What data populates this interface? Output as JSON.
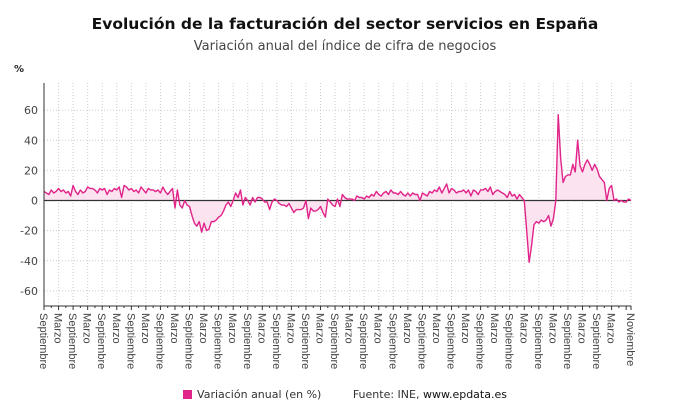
{
  "chart_data": {
    "type": "area",
    "title": "Evolución de la facturación del sector servicios en España",
    "subtitle": "Variación anual del índice de cifra de negocios",
    "ylabel": "%",
    "xlabel": "",
    "ylim": [
      -70,
      78
    ],
    "yticks": [
      60,
      40,
      20,
      0,
      -20,
      -40,
      -60
    ],
    "grid": true,
    "legend_position": "bottom",
    "colors": {
      "line": "#e0248a",
      "fill": "#fbe3f0",
      "zero_line": "#333333",
      "grid": "#cccccc"
    },
    "xtick_labels": [
      "Septiembre",
      "Marzo",
      "Septiembre",
      "Marzo",
      "Septiembre",
      "Marzo",
      "Septiembre",
      "Marzo",
      "Septiembre",
      "Marzo",
      "Septiembre",
      "Marzo",
      "Septiembre",
      "Marzo",
      "Septiembre",
      "Marzo",
      "Septiembre",
      "Marzo",
      "Septiembre",
      "Marzo",
      "Septiembre",
      "Marzo",
      "Septiembre",
      "Marzo",
      "Septiembre",
      "Marzo",
      "Septiembre",
      "Marzo",
      "Septiembre",
      "Marzo",
      "Septiembre",
      "Marzo",
      "Septiembre",
      "Marzo",
      "Septiembre",
      "Marzo",
      "Septiembre",
      "Marzo",
      "Septiembre",
      "Marzo",
      "Noviembre"
    ],
    "series": [
      {
        "name": "Variación anual (en %)",
        "values": [
          6,
          5,
          4,
          7,
          5,
          6,
          8,
          6,
          7,
          5,
          6,
          3,
          10,
          6,
          4,
          7,
          5,
          6,
          9,
          8,
          8,
          7,
          5,
          8,
          7,
          8,
          4,
          7,
          6,
          8,
          7,
          9,
          2,
          10,
          9,
          7,
          8,
          6,
          7,
          5,
          9,
          7,
          5,
          8,
          7,
          7,
          6,
          7,
          5,
          9,
          6,
          4,
          6,
          8,
          -5,
          7,
          -3,
          -5,
          0,
          -3,
          -4,
          -10,
          -15,
          -17,
          -14,
          -21,
          -15,
          -20,
          -19,
          -14,
          -14,
          -13,
          -11,
          -10,
          -7,
          -3,
          -1,
          -4,
          0,
          5,
          2,
          7,
          -3,
          2,
          0,
          -3,
          2,
          -1,
          2,
          2,
          1,
          -1,
          -1,
          -6,
          -1,
          1,
          0,
          -2,
          -3,
          -3,
          -4,
          -2,
          -5,
          -8,
          -6,
          -6,
          -6,
          -5,
          0,
          -12,
          -5,
          -7,
          -7,
          -6,
          -4,
          -8,
          -11,
          1,
          -1,
          -3,
          -4,
          1,
          -4,
          4,
          2,
          1,
          1,
          1,
          0,
          3,
          2,
          2,
          1,
          3,
          2,
          4,
          3,
          6,
          4,
          3,
          5,
          6,
          4,
          7,
          5,
          5,
          4,
          6,
          4,
          3,
          5,
          3,
          5,
          4,
          4,
          0,
          5,
          4,
          3,
          6,
          5,
          7,
          6,
          9,
          5,
          8,
          11,
          5,
          8,
          7,
          5,
          6,
          6,
          7,
          5,
          7,
          3,
          7,
          6,
          4,
          7,
          7,
          8,
          6,
          9,
          4,
          6,
          7,
          6,
          5,
          4,
          2,
          6,
          3,
          4,
          1,
          4,
          2,
          0,
          -20,
          -41,
          -30,
          -16,
          -14,
          -15,
          -13,
          -14,
          -13,
          -10,
          -17,
          -12,
          0,
          57,
          28,
          12,
          16,
          17,
          17,
          24,
          19,
          40,
          23,
          19,
          24,
          27,
          24,
          20,
          24,
          21,
          16,
          14,
          12,
          0,
          8,
          10,
          0,
          1,
          -1,
          0,
          -1,
          -1,
          1,
          0
        ]
      }
    ],
    "source": "Fuente: INE,",
    "source_site": "www.epdata.es"
  }
}
